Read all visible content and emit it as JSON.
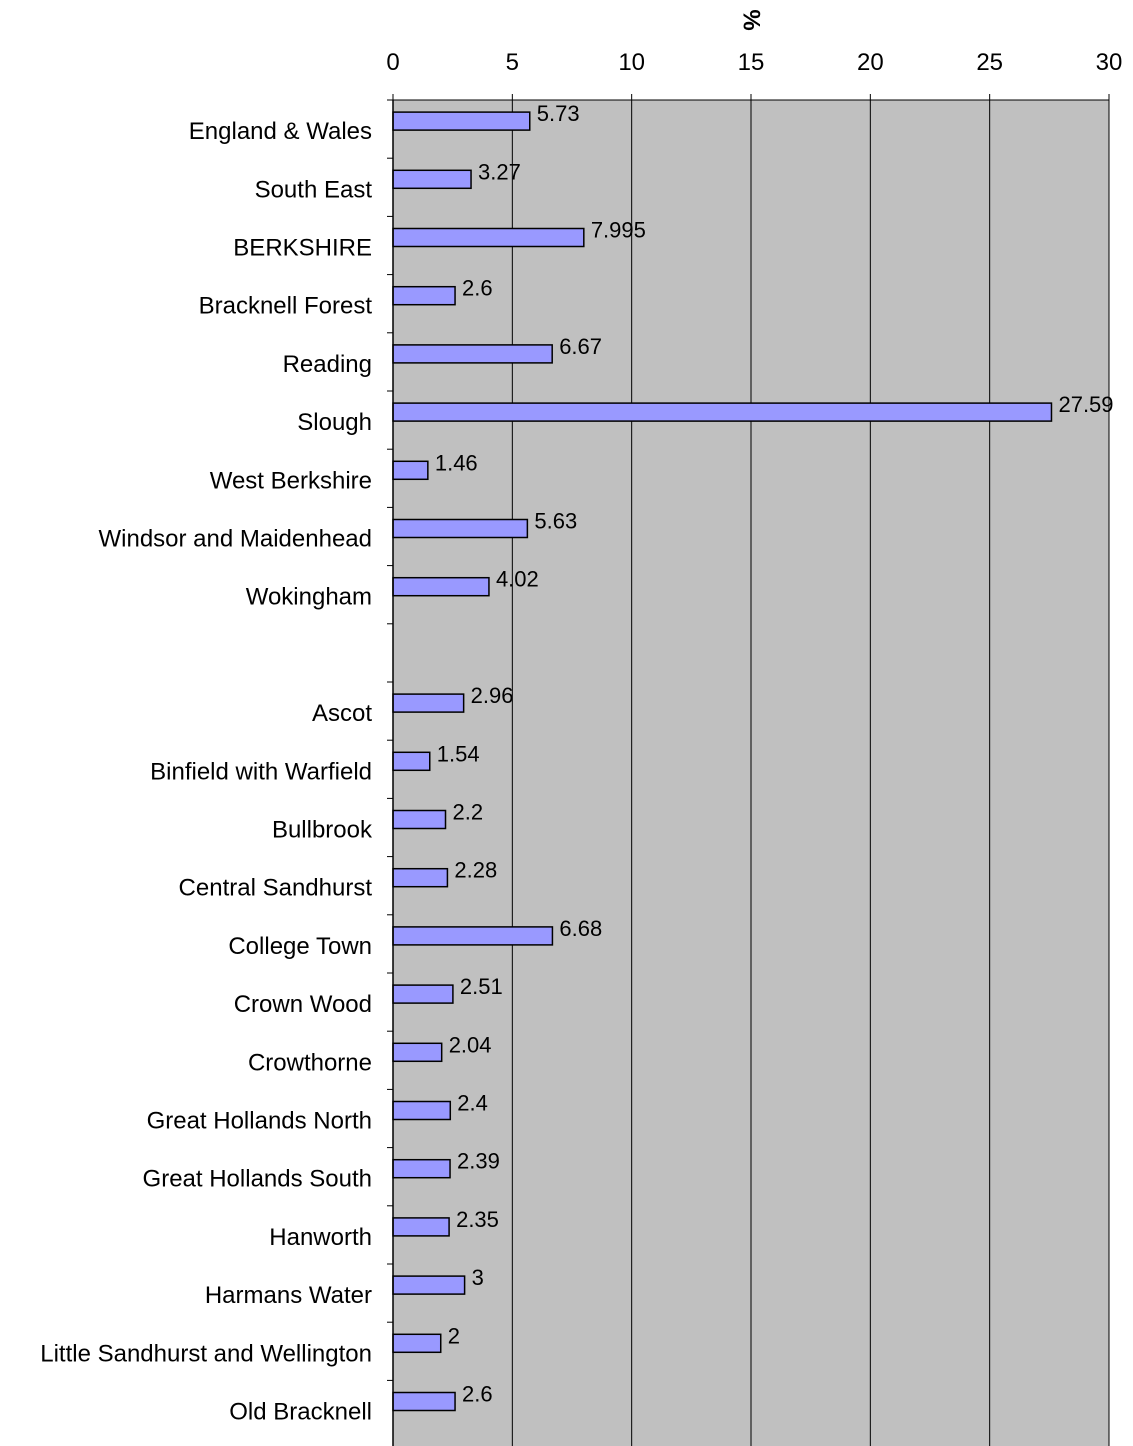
{
  "chart_data": {
    "type": "bar",
    "orientation": "horizontal",
    "xlabel": "%",
    "xlim": [
      0,
      30
    ],
    "ticks": [
      0,
      5,
      10,
      15,
      20,
      25,
      30
    ],
    "grid": "vertical",
    "legend": "none",
    "colors": {
      "plot_background": "#c0c0c0",
      "bar_fill": "#9999ff",
      "bar_stroke": "#000000",
      "gridline": "#000000"
    },
    "categories": [
      "England & Wales",
      "South East",
      "BERKSHIRE",
      "Bracknell Forest",
      "Reading",
      "Slough",
      "West Berkshire",
      "Windsor and Maidenhead",
      "Wokingham",
      "",
      "Ascot",
      "Binfield with Warfield",
      "Bullbrook",
      "Central Sandhurst",
      "College Town",
      "Crown Wood",
      "Crowthorne",
      "Great Hollands North",
      "Great Hollands South",
      "Hanworth",
      "Harmans Water",
      "Little Sandhurst and Wellington",
      "Old Bracknell"
    ],
    "values": [
      5.73,
      3.27,
      7.995,
      2.6,
      6.67,
      27.59,
      1.46,
      5.63,
      4.02,
      null,
      2.96,
      1.54,
      2.2,
      2.28,
      6.68,
      2.51,
      2.04,
      2.4,
      2.39,
      2.35,
      3,
      2,
      2.6
    ],
    "data_labels": [
      "5.73",
      "3.27",
      "7.995",
      "2.6",
      "6.67",
      "27.59",
      "1.46",
      "5.63",
      "4.02",
      "",
      "2.96",
      "1.54",
      "2.2",
      "2.28",
      "6.68",
      "2.51",
      "2.04",
      "2.4",
      "2.39",
      "2.35",
      "3",
      "2",
      "2.6"
    ]
  }
}
